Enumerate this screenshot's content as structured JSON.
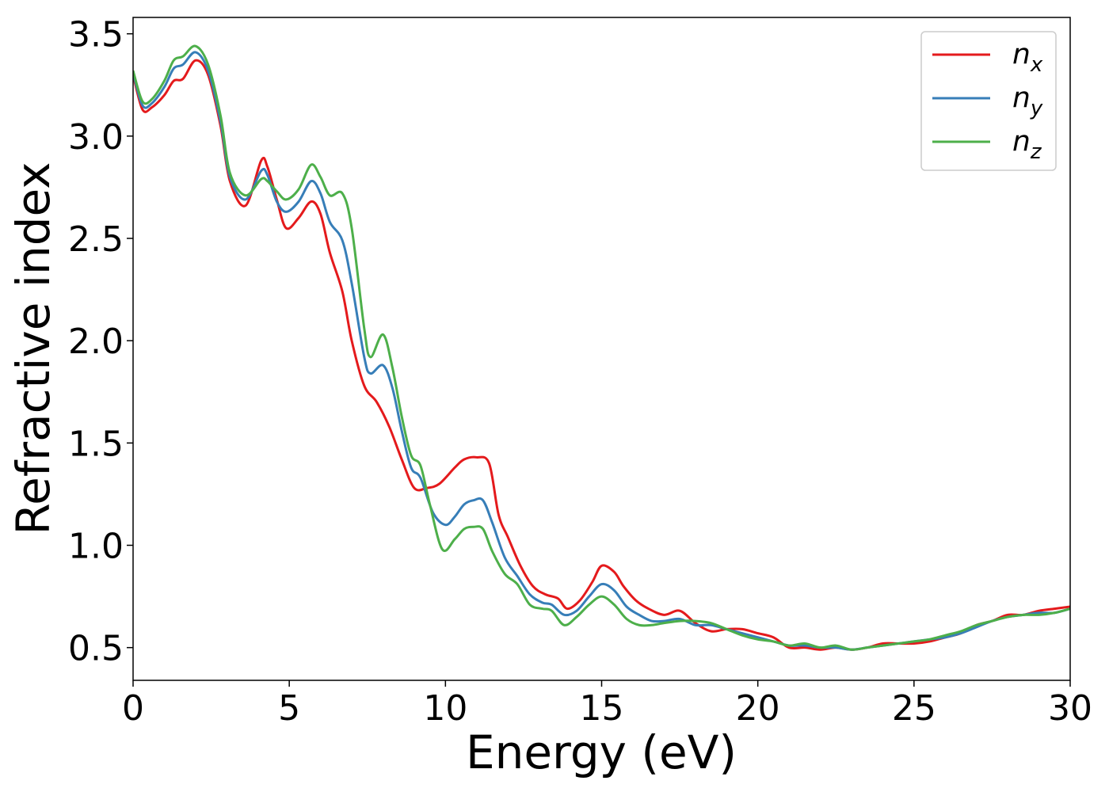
{
  "chart_data": {
    "type": "line",
    "xlabel": "Energy (eV)",
    "ylabel": "Refractive index",
    "xlim": [
      0,
      30
    ],
    "ylim": [
      0.34,
      3.58
    ],
    "x_ticks": [
      0,
      5,
      10,
      15,
      20,
      25,
      30
    ],
    "x_tick_labels": [
      "0",
      "5",
      "10",
      "15",
      "20",
      "25",
      "30"
    ],
    "y_ticks": [
      0.5,
      1.0,
      1.5,
      2.0,
      2.5,
      3.0,
      3.5
    ],
    "y_tick_labels": [
      "0.5",
      "1.0",
      "1.5",
      "2.0",
      "2.5",
      "3.0",
      "3.5"
    ],
    "grid": false,
    "legend_position": "top-right",
    "series": [
      {
        "name": "n_x",
        "label_base": "n",
        "label_sub": "x",
        "color": "#e41a1c",
        "points": [
          [
            0,
            3.3
          ],
          [
            0.3,
            3.13
          ],
          [
            0.6,
            3.14
          ],
          [
            1.0,
            3.2
          ],
          [
            1.3,
            3.27
          ],
          [
            1.6,
            3.28
          ],
          [
            2.0,
            3.37
          ],
          [
            2.4,
            3.3
          ],
          [
            2.8,
            3.05
          ],
          [
            3.1,
            2.78
          ],
          [
            3.6,
            2.66
          ],
          [
            4.1,
            2.88
          ],
          [
            4.3,
            2.85
          ],
          [
            4.6,
            2.69
          ],
          [
            4.9,
            2.55
          ],
          [
            5.3,
            2.6
          ],
          [
            5.7,
            2.68
          ],
          [
            6.0,
            2.62
          ],
          [
            6.3,
            2.43
          ],
          [
            6.7,
            2.24
          ],
          [
            7.0,
            2.0
          ],
          [
            7.4,
            1.78
          ],
          [
            7.8,
            1.7
          ],
          [
            8.2,
            1.58
          ],
          [
            8.6,
            1.42
          ],
          [
            9.0,
            1.28
          ],
          [
            9.4,
            1.28
          ],
          [
            9.8,
            1.3
          ],
          [
            10.3,
            1.38
          ],
          [
            10.6,
            1.42
          ],
          [
            11.0,
            1.43
          ],
          [
            11.4,
            1.4
          ],
          [
            11.7,
            1.15
          ],
          [
            12.0,
            1.04
          ],
          [
            12.4,
            0.9
          ],
          [
            12.8,
            0.8
          ],
          [
            13.2,
            0.76
          ],
          [
            13.6,
            0.74
          ],
          [
            13.9,
            0.69
          ],
          [
            14.3,
            0.73
          ],
          [
            14.7,
            0.82
          ],
          [
            15.0,
            0.9
          ],
          [
            15.4,
            0.87
          ],
          [
            15.7,
            0.8
          ],
          [
            16.1,
            0.73
          ],
          [
            16.5,
            0.69
          ],
          [
            17.0,
            0.66
          ],
          [
            17.5,
            0.68
          ],
          [
            18.0,
            0.62
          ],
          [
            18.5,
            0.58
          ],
          [
            19.0,
            0.59
          ],
          [
            19.5,
            0.59
          ],
          [
            20.0,
            0.57
          ],
          [
            20.5,
            0.55
          ],
          [
            21.0,
            0.5
          ],
          [
            21.5,
            0.5
          ],
          [
            22.0,
            0.49
          ],
          [
            22.5,
            0.5
          ],
          [
            23.0,
            0.49
          ],
          [
            23.5,
            0.5
          ],
          [
            24.0,
            0.52
          ],
          [
            24.5,
            0.52
          ],
          [
            25.0,
            0.52
          ],
          [
            25.5,
            0.53
          ],
          [
            26.0,
            0.55
          ],
          [
            26.5,
            0.57
          ],
          [
            27.0,
            0.61
          ],
          [
            27.5,
            0.63
          ],
          [
            28.0,
            0.66
          ],
          [
            28.5,
            0.66
          ],
          [
            29.0,
            0.68
          ],
          [
            29.5,
            0.69
          ],
          [
            30.0,
            0.7
          ]
        ]
      },
      {
        "name": "n_y",
        "label_base": "n",
        "label_sub": "y",
        "color": "#377eb8",
        "points": [
          [
            0,
            3.31
          ],
          [
            0.3,
            3.15
          ],
          [
            0.6,
            3.16
          ],
          [
            1.0,
            3.24
          ],
          [
            1.3,
            3.33
          ],
          [
            1.6,
            3.35
          ],
          [
            2.0,
            3.41
          ],
          [
            2.4,
            3.32
          ],
          [
            2.8,
            3.07
          ],
          [
            3.1,
            2.8
          ],
          [
            3.6,
            2.69
          ],
          [
            4.1,
            2.83
          ],
          [
            4.3,
            2.81
          ],
          [
            4.6,
            2.68
          ],
          [
            4.9,
            2.63
          ],
          [
            5.3,
            2.68
          ],
          [
            5.7,
            2.78
          ],
          [
            6.0,
            2.72
          ],
          [
            6.3,
            2.58
          ],
          [
            6.7,
            2.49
          ],
          [
            7.0,
            2.28
          ],
          [
            7.4,
            1.92
          ],
          [
            7.6,
            1.84
          ],
          [
            8.0,
            1.88
          ],
          [
            8.3,
            1.77
          ],
          [
            8.6,
            1.56
          ],
          [
            8.9,
            1.38
          ],
          [
            9.2,
            1.33
          ],
          [
            9.6,
            1.16
          ],
          [
            10.0,
            1.1
          ],
          [
            10.3,
            1.14
          ],
          [
            10.6,
            1.2
          ],
          [
            10.9,
            1.22
          ],
          [
            11.2,
            1.22
          ],
          [
            11.5,
            1.11
          ],
          [
            11.9,
            0.94
          ],
          [
            12.3,
            0.85
          ],
          [
            12.7,
            0.76
          ],
          [
            13.1,
            0.72
          ],
          [
            13.4,
            0.71
          ],
          [
            13.8,
            0.66
          ],
          [
            14.2,
            0.68
          ],
          [
            14.6,
            0.75
          ],
          [
            15.0,
            0.81
          ],
          [
            15.4,
            0.78
          ],
          [
            15.8,
            0.7
          ],
          [
            16.2,
            0.66
          ],
          [
            16.6,
            0.63
          ],
          [
            17.0,
            0.63
          ],
          [
            17.5,
            0.64
          ],
          [
            18.0,
            0.61
          ],
          [
            18.5,
            0.61
          ],
          [
            19.0,
            0.59
          ],
          [
            19.5,
            0.57
          ],
          [
            20.0,
            0.55
          ],
          [
            20.5,
            0.53
          ],
          [
            21.0,
            0.51
          ],
          [
            21.5,
            0.51
          ],
          [
            22.0,
            0.5
          ],
          [
            22.5,
            0.5
          ],
          [
            23.0,
            0.49
          ],
          [
            23.5,
            0.5
          ],
          [
            24.0,
            0.51
          ],
          [
            24.5,
            0.52
          ],
          [
            25.0,
            0.53
          ],
          [
            25.5,
            0.54
          ],
          [
            26.0,
            0.55
          ],
          [
            26.5,
            0.57
          ],
          [
            27.0,
            0.6
          ],
          [
            27.5,
            0.63
          ],
          [
            28.0,
            0.65
          ],
          [
            28.5,
            0.66
          ],
          [
            29.0,
            0.67
          ],
          [
            29.5,
            0.67
          ],
          [
            30.0,
            0.69
          ]
        ]
      },
      {
        "name": "n_z",
        "label_base": "n",
        "label_sub": "z",
        "color": "#4daf4a",
        "points": [
          [
            0,
            3.32
          ],
          [
            0.3,
            3.17
          ],
          [
            0.6,
            3.18
          ],
          [
            1.0,
            3.27
          ],
          [
            1.3,
            3.37
          ],
          [
            1.6,
            3.39
          ],
          [
            2.0,
            3.44
          ],
          [
            2.4,
            3.35
          ],
          [
            2.8,
            3.1
          ],
          [
            3.1,
            2.82
          ],
          [
            3.6,
            2.71
          ],
          [
            4.1,
            2.79
          ],
          [
            4.3,
            2.78
          ],
          [
            4.6,
            2.73
          ],
          [
            4.9,
            2.69
          ],
          [
            5.3,
            2.74
          ],
          [
            5.7,
            2.86
          ],
          [
            6.0,
            2.8
          ],
          [
            6.3,
            2.71
          ],
          [
            6.7,
            2.72
          ],
          [
            7.0,
            2.55
          ],
          [
            7.4,
            2.06
          ],
          [
            7.6,
            1.92
          ],
          [
            8.0,
            2.03
          ],
          [
            8.3,
            1.87
          ],
          [
            8.6,
            1.63
          ],
          [
            8.9,
            1.44
          ],
          [
            9.2,
            1.39
          ],
          [
            9.5,
            1.2
          ],
          [
            9.9,
            0.98
          ],
          [
            10.3,
            1.03
          ],
          [
            10.6,
            1.08
          ],
          [
            10.9,
            1.09
          ],
          [
            11.2,
            1.08
          ],
          [
            11.5,
            0.97
          ],
          [
            11.9,
            0.86
          ],
          [
            12.3,
            0.81
          ],
          [
            12.7,
            0.71
          ],
          [
            13.1,
            0.69
          ],
          [
            13.4,
            0.68
          ],
          [
            13.8,
            0.61
          ],
          [
            14.2,
            0.65
          ],
          [
            14.6,
            0.71
          ],
          [
            15.0,
            0.75
          ],
          [
            15.4,
            0.71
          ],
          [
            15.8,
            0.64
          ],
          [
            16.2,
            0.61
          ],
          [
            16.6,
            0.61
          ],
          [
            17.0,
            0.62
          ],
          [
            17.5,
            0.63
          ],
          [
            18.0,
            0.63
          ],
          [
            18.5,
            0.62
          ],
          [
            19.0,
            0.59
          ],
          [
            19.5,
            0.56
          ],
          [
            20.0,
            0.54
          ],
          [
            20.5,
            0.53
          ],
          [
            21.0,
            0.51
          ],
          [
            21.5,
            0.52
          ],
          [
            22.0,
            0.5
          ],
          [
            22.5,
            0.51
          ],
          [
            23.0,
            0.49
          ],
          [
            23.5,
            0.5
          ],
          [
            24.0,
            0.51
          ],
          [
            24.5,
            0.52
          ],
          [
            25.0,
            0.53
          ],
          [
            25.5,
            0.54
          ],
          [
            26.0,
            0.56
          ],
          [
            26.5,
            0.58
          ],
          [
            27.0,
            0.61
          ],
          [
            27.5,
            0.63
          ],
          [
            28.0,
            0.65
          ],
          [
            28.5,
            0.66
          ],
          [
            29.0,
            0.66
          ],
          [
            29.5,
            0.67
          ],
          [
            30.0,
            0.69
          ]
        ]
      }
    ]
  }
}
